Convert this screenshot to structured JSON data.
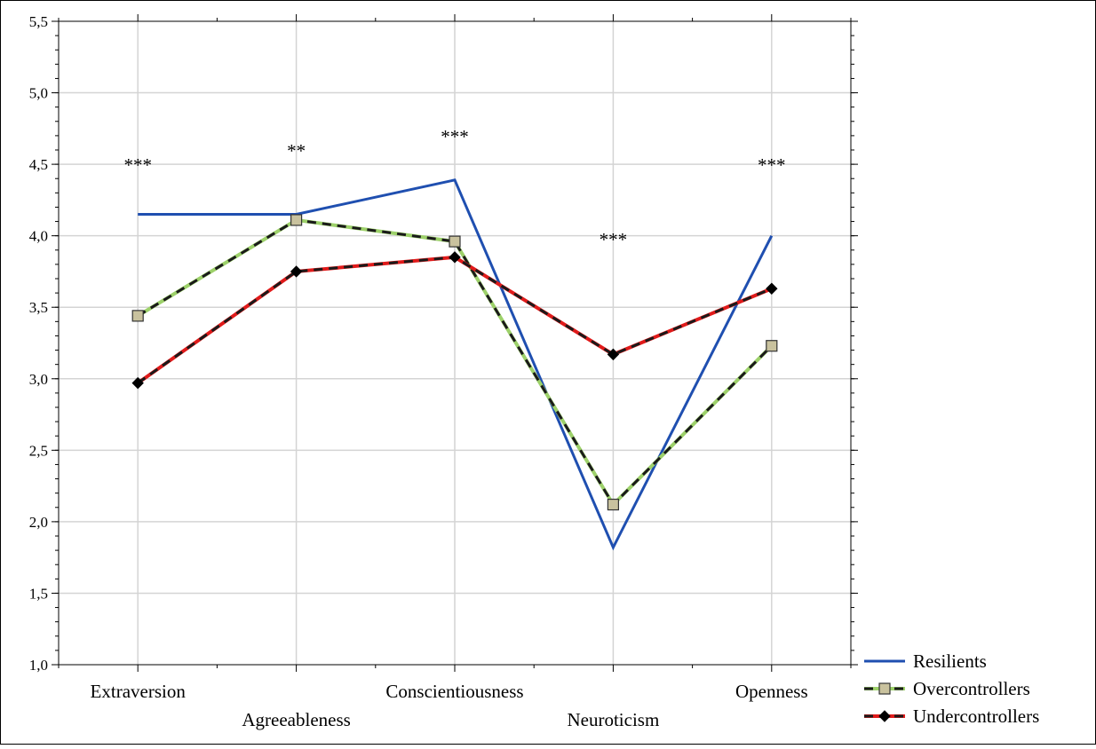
{
  "chart_data": {
    "type": "line",
    "title": "",
    "xlabel": "",
    "ylabel": "",
    "categories": [
      "Extraversion",
      "Agreeableness",
      "Conscientiousness",
      "Neuroticism",
      "Openness"
    ],
    "ylim": [
      1.0,
      5.5
    ],
    "yticks": [
      "1,0",
      "1,5",
      "2,0",
      "2,5",
      "3,0",
      "3,5",
      "4,0",
      "4,5",
      "5,0",
      "5,5"
    ],
    "grid": true,
    "legend_position": "bottom-right",
    "series": [
      {
        "name": "Resilients",
        "values": [
          4.15,
          4.15,
          4.39,
          1.82,
          4.0
        ],
        "color": "#1f4fb0",
        "style": "solid",
        "marker": "none"
      },
      {
        "name": "Overcontrollers",
        "values": [
          3.44,
          4.11,
          3.96,
          2.12,
          3.23
        ],
        "color": "#9dd16a",
        "dash_color": "#1a1a1a",
        "style": "dashed",
        "marker": "square",
        "marker_color": "#c9c29e"
      },
      {
        "name": "Undercontrollers",
        "values": [
          2.97,
          3.75,
          3.85,
          3.17,
          3.63
        ],
        "color": "#e01a1a",
        "dash_color": "#1a1a1a",
        "style": "dashed",
        "marker": "diamond",
        "marker_color": "#000000"
      }
    ],
    "annotations": [
      {
        "category_index": 0,
        "y": 4.45,
        "text": "***"
      },
      {
        "category_index": 1,
        "y": 4.55,
        "text": "**"
      },
      {
        "category_index": 2,
        "y": 4.65,
        "text": "***"
      },
      {
        "category_index": 3,
        "y": 3.93,
        "text": "***"
      },
      {
        "category_index": 4,
        "y": 4.45,
        "text": "***"
      }
    ]
  }
}
